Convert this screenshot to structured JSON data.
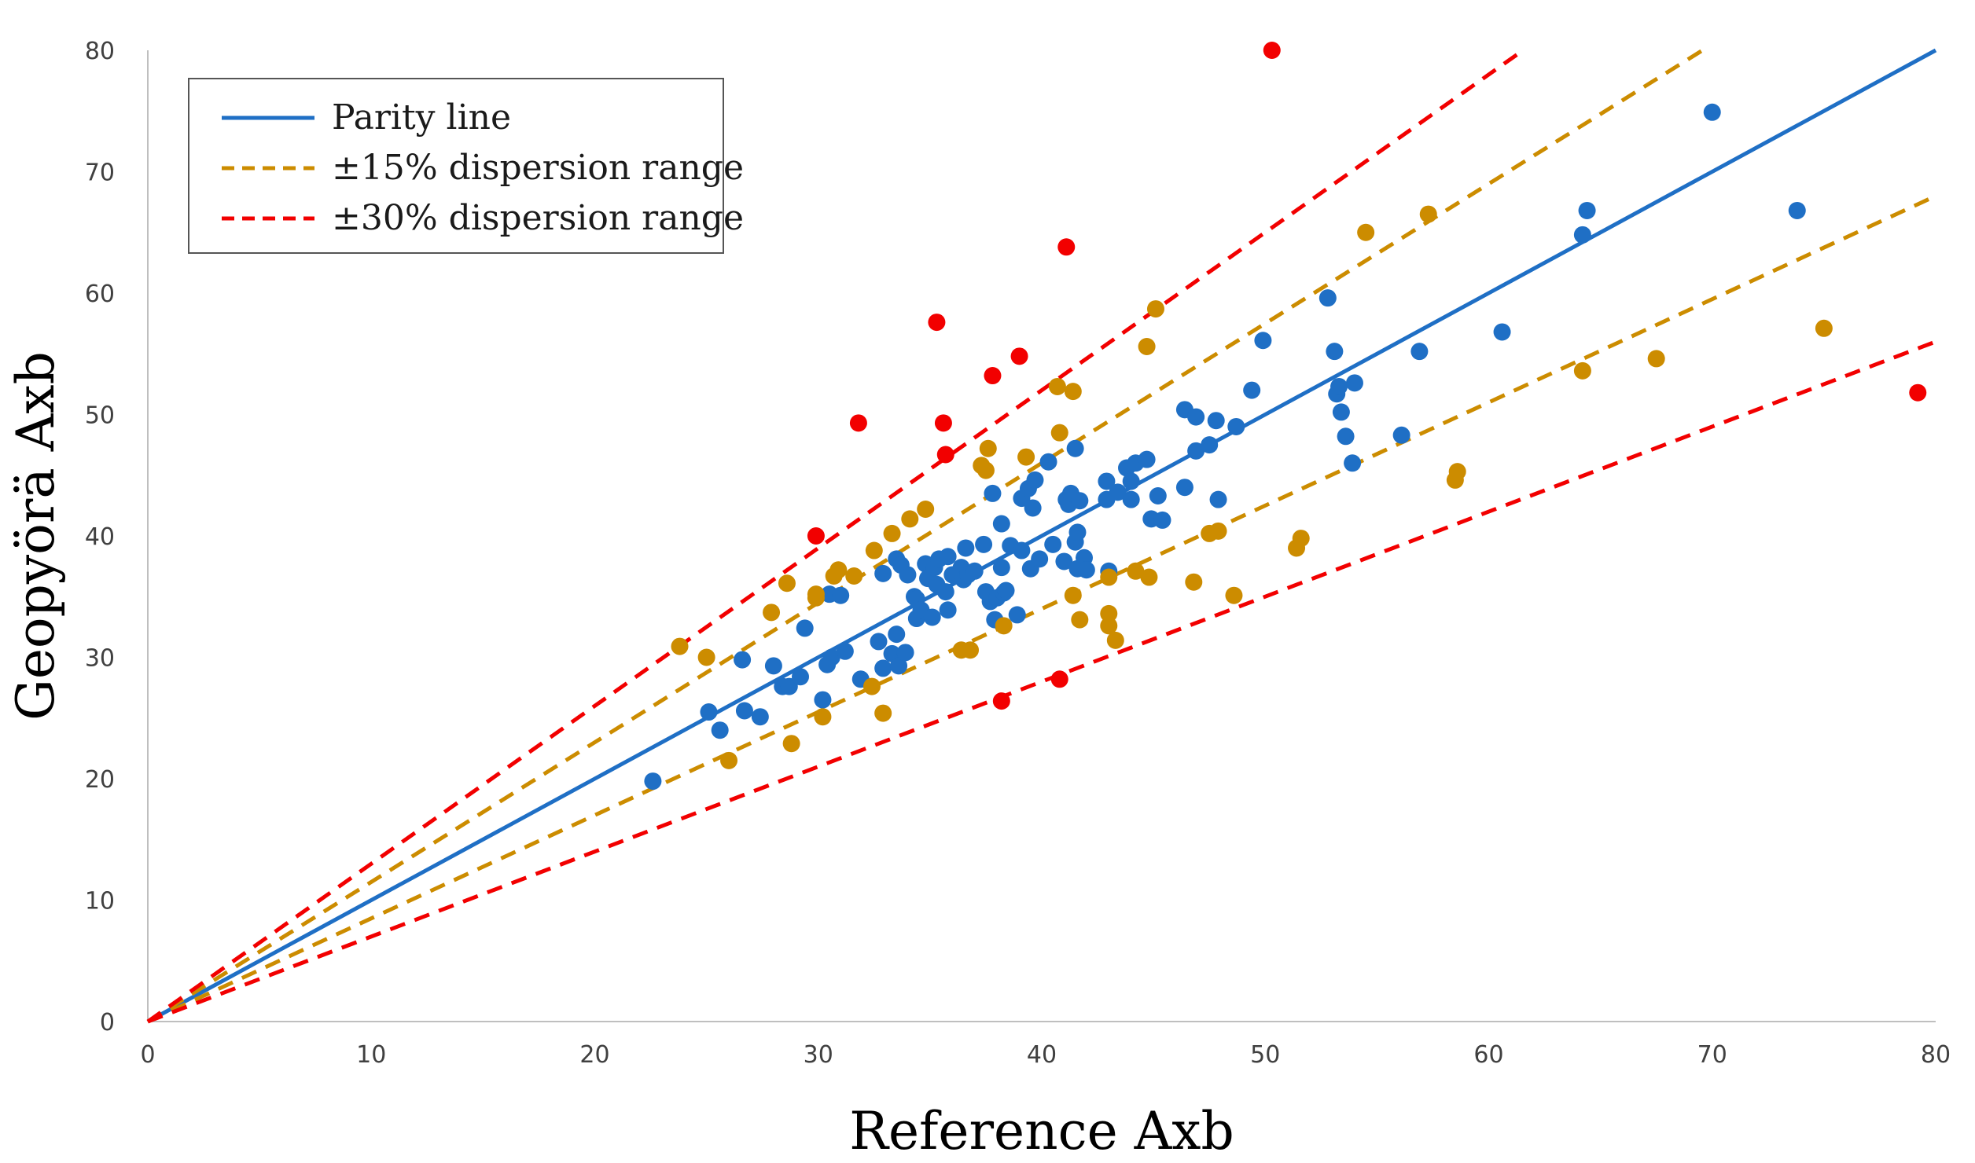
{
  "chart_data": {
    "type": "scatter",
    "title": "",
    "xlabel": "Reference Axb",
    "ylabel": "Geopyörä Axb",
    "xlim": [
      0,
      80
    ],
    "ylim": [
      0,
      80
    ],
    "xticks": [
      "0",
      "10",
      "20",
      "30",
      "40",
      "50",
      "60",
      "70",
      "80"
    ],
    "yticks": [
      "0",
      "10",
      "20",
      "30",
      "40",
      "50",
      "60",
      "70",
      "80"
    ],
    "grid": false,
    "legend_position": "top-left",
    "colors": {
      "parity": "#1f6fc5",
      "within15": "#cc8c00",
      "within30": "#f20000",
      "axis": "#bfbfbf"
    },
    "lines": [
      {
        "name": "Parity line",
        "slope": 1.0,
        "style": "solid",
        "color": "#1f6fc5"
      },
      {
        "name": "±15% dispersion range",
        "slopes": [
          1.15,
          0.85
        ],
        "style": "dashed",
        "color": "#cc8c00"
      },
      {
        "name": "±30% dispersion range",
        "slopes": [
          1.3,
          0.7
        ],
        "style": "dashed",
        "color": "#f20000"
      }
    ],
    "series": [
      {
        "name": "blue points",
        "color": "#1f6fc5",
        "points": [
          [
            22.6,
            19.8
          ],
          [
            25.1,
            25.5
          ],
          [
            25.6,
            24.0
          ],
          [
            26.6,
            29.8
          ],
          [
            26.7,
            25.6
          ],
          [
            27.4,
            25.1
          ],
          [
            28,
            29.3
          ],
          [
            28.4,
            27.6
          ],
          [
            28.7,
            27.6
          ],
          [
            29.2,
            28.4
          ],
          [
            29.4,
            32.4
          ],
          [
            30.2,
            26.5
          ],
          [
            30.4,
            29.4
          ],
          [
            30.5,
            35.2
          ],
          [
            30.6,
            30.0
          ],
          [
            31,
            35.1
          ],
          [
            31.2,
            30.5
          ],
          [
            31.9,
            28.2
          ],
          [
            32.7,
            31.3
          ],
          [
            32.9,
            29.1
          ],
          [
            32.9,
            36.9
          ],
          [
            33.3,
            30.3
          ],
          [
            33.5,
            38.1
          ],
          [
            33.5,
            31.9
          ],
          [
            33.6,
            29.3
          ],
          [
            33.7,
            37.6
          ],
          [
            33.9,
            30.4
          ],
          [
            34,
            36.8
          ],
          [
            34.3,
            35.0
          ],
          [
            34.4,
            33.2
          ],
          [
            34.4,
            34.8
          ],
          [
            34.6,
            33.9
          ],
          [
            34.8,
            37.7
          ],
          [
            34.9,
            36.5
          ],
          [
            35.1,
            33.3
          ],
          [
            35.2,
            37.4
          ],
          [
            35.3,
            36.0
          ],
          [
            35.4,
            38.1
          ],
          [
            35.7,
            35.4
          ],
          [
            35.8,
            33.9
          ],
          [
            35.8,
            38.3
          ],
          [
            36,
            36.8
          ],
          [
            36.4,
            37.4
          ],
          [
            36.5,
            36.4
          ],
          [
            36.6,
            39.0
          ],
          [
            36.7,
            36.8
          ],
          [
            37,
            37.1
          ],
          [
            37.4,
            39.3
          ],
          [
            37.5,
            35.4
          ],
          [
            37.7,
            34.6
          ],
          [
            37.8,
            43.5
          ],
          [
            37.9,
            33.1
          ],
          [
            38,
            34.9
          ],
          [
            38.2,
            37.4
          ],
          [
            38.2,
            41.0
          ],
          [
            38.3,
            35.3
          ],
          [
            38.4,
            35.5
          ],
          [
            38.6,
            39.2
          ],
          [
            38.9,
            33.5
          ],
          [
            39.1,
            43.1
          ],
          [
            39.1,
            38.8
          ],
          [
            39.4,
            43.9
          ],
          [
            39.5,
            37.3
          ],
          [
            39.6,
            42.3
          ],
          [
            39.7,
            44.6
          ],
          [
            39.9,
            38.1
          ],
          [
            40.3,
            46.1
          ],
          [
            40.5,
            39.3
          ],
          [
            41,
            37.9
          ],
          [
            41.1,
            43.0
          ],
          [
            41.2,
            42.6
          ],
          [
            41.3,
            43.5
          ],
          [
            41.5,
            47.2
          ],
          [
            41.5,
            39.5
          ],
          [
            41.6,
            40.3
          ],
          [
            41.6,
            37.3
          ],
          [
            41.7,
            42.9
          ],
          [
            41.9,
            38.2
          ],
          [
            42,
            37.2
          ],
          [
            42.9,
            44.5
          ],
          [
            42.9,
            43.0
          ],
          [
            43,
            37.1
          ],
          [
            43.4,
            43.6
          ],
          [
            43.8,
            45.6
          ],
          [
            44,
            43.0
          ],
          [
            44,
            44.5
          ],
          [
            44.2,
            46.0
          ],
          [
            44.7,
            46.3
          ],
          [
            44.9,
            41.4
          ],
          [
            45.2,
            43.3
          ],
          [
            45.4,
            41.3
          ],
          [
            46.4,
            50.4
          ],
          [
            46.4,
            44.0
          ],
          [
            46.9,
            49.8
          ],
          [
            46.9,
            47.0
          ],
          [
            47.5,
            47.5
          ],
          [
            47.8,
            49.5
          ],
          [
            47.9,
            43.0
          ],
          [
            48.7,
            49.0
          ],
          [
            49.4,
            52.0
          ],
          [
            49.9,
            56.1
          ],
          [
            52.8,
            59.6
          ],
          [
            53.1,
            55.2
          ],
          [
            53.2,
            51.7
          ],
          [
            53.3,
            52.3
          ],
          [
            53.4,
            50.2
          ],
          [
            53.6,
            48.2
          ],
          [
            53.9,
            46.0
          ],
          [
            54,
            52.6
          ],
          [
            56.1,
            48.3
          ],
          [
            56.9,
            55.2
          ],
          [
            60.6,
            56.8
          ],
          [
            64.2,
            64.8
          ],
          [
            64.4,
            66.8
          ],
          [
            70,
            74.9
          ],
          [
            73.8,
            66.8
          ]
        ]
      },
      {
        "name": "orange points",
        "color": "#cc8c00",
        "points": [
          [
            23.8,
            30.9
          ],
          [
            25,
            30.0
          ],
          [
            26,
            21.5
          ],
          [
            27.9,
            33.7
          ],
          [
            28.6,
            36.1
          ],
          [
            28.8,
            22.9
          ],
          [
            29.9,
            35.2
          ],
          [
            29.9,
            34.9
          ],
          [
            30.2,
            25.1
          ],
          [
            30.9,
            37.2
          ],
          [
            30.7,
            36.7
          ],
          [
            31.6,
            36.7
          ],
          [
            32.4,
            27.6
          ],
          [
            32.5,
            38.8
          ],
          [
            32.9,
            25.4
          ],
          [
            33.3,
            40.2
          ],
          [
            34.1,
            41.4
          ],
          [
            34.8,
            42.2
          ],
          [
            36.4,
            30.6
          ],
          [
            36.8,
            30.6
          ],
          [
            37.3,
            45.8
          ],
          [
            37.5,
            45.4
          ],
          [
            37.6,
            47.2
          ],
          [
            38.3,
            32.6
          ],
          [
            39.3,
            46.5
          ],
          [
            40.7,
            52.3
          ],
          [
            40.8,
            48.5
          ],
          [
            41.4,
            51.9
          ],
          [
            41.4,
            35.1
          ],
          [
            41.7,
            33.1
          ],
          [
            43,
            36.6
          ],
          [
            43,
            33.6
          ],
          [
            43,
            32.6
          ],
          [
            43.3,
            31.4
          ],
          [
            44.2,
            37.1
          ],
          [
            44.7,
            55.6
          ],
          [
            44.8,
            36.6
          ],
          [
            45.1,
            58.7
          ],
          [
            46.8,
            36.2
          ],
          [
            47.5,
            40.2
          ],
          [
            47.9,
            40.4
          ],
          [
            48.6,
            35.1
          ],
          [
            51.4,
            39.0
          ],
          [
            51.6,
            39.8
          ],
          [
            54.5,
            65.0
          ],
          [
            57.3,
            66.5
          ],
          [
            58.5,
            44.6
          ],
          [
            58.6,
            45.3
          ],
          [
            64.2,
            53.6
          ],
          [
            67.5,
            54.6
          ],
          [
            75,
            57.1
          ]
        ]
      },
      {
        "name": "red points",
        "color": "#f20000",
        "points": [
          [
            29.9,
            40.0
          ],
          [
            31.8,
            49.3
          ],
          [
            35.3,
            57.6
          ],
          [
            35.6,
            49.3
          ],
          [
            35.7,
            46.7
          ],
          [
            37.8,
            53.2
          ],
          [
            38.2,
            26.4
          ],
          [
            39,
            54.8
          ],
          [
            40.8,
            28.2
          ],
          [
            41.1,
            63.8
          ],
          [
            50.3,
            80.0
          ],
          [
            79.2,
            51.8
          ]
        ]
      }
    ],
    "legend": [
      {
        "label": "Parity line",
        "color": "#1f6fc5",
        "style": "solid"
      },
      {
        "label": "±15% dispersion range",
        "color": "#cc8c00",
        "style": "dashed"
      },
      {
        "label": "±30% dispersion range",
        "color": "#f20000",
        "style": "dashed"
      }
    ]
  }
}
